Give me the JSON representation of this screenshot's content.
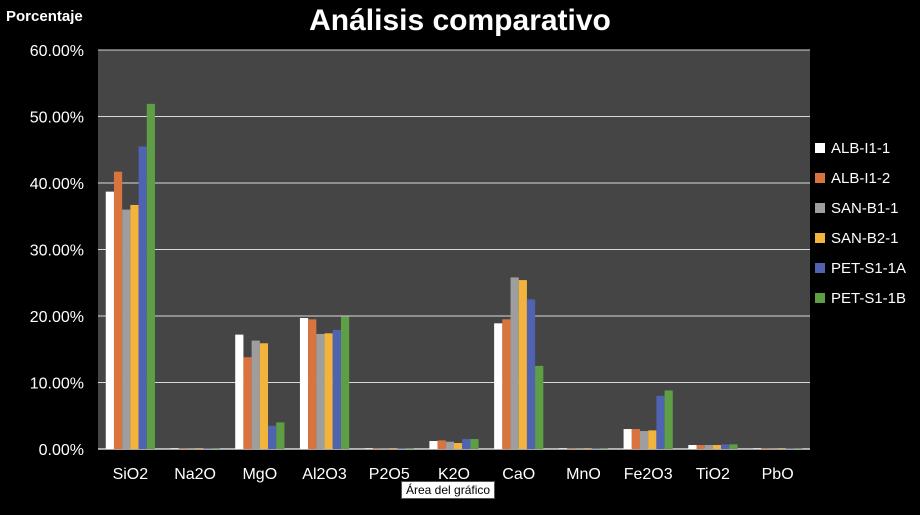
{
  "chart_data": {
    "type": "bar",
    "title": "Análisis comparativo",
    "ylabel": "Porcentaje",
    "xlabel": "",
    "ylim": [
      0,
      60
    ],
    "yticks": [
      "0.00%",
      "10.00%",
      "20.00%",
      "30.00%",
      "40.00%",
      "50.00%",
      "60.00%"
    ],
    "categories": [
      "SiO2",
      "Na2O",
      "MgO",
      "Al2O3",
      "P2O5",
      "K2O",
      "CaO",
      "MnO",
      "Fe2O3",
      "TiO2",
      "PbO"
    ],
    "grid": true,
    "legend_position": "right",
    "series": [
      {
        "name": "ALB-I1-1",
        "color": "#ffffff",
        "values": [
          38.7,
          0.1,
          17.2,
          19.7,
          0.1,
          1.2,
          18.9,
          0.1,
          3.0,
          0.6,
          0.1
        ]
      },
      {
        "name": "ALB-I1-2",
        "color": "#d9743f",
        "values": [
          41.7,
          0.1,
          13.8,
          19.5,
          0.1,
          1.3,
          19.5,
          0.1,
          3.0,
          0.6,
          0.1
        ]
      },
      {
        "name": "SAN-B1-1",
        "color": "#9e9e9e",
        "values": [
          36.0,
          0.1,
          16.3,
          17.3,
          0.1,
          1.1,
          25.8,
          0.1,
          2.7,
          0.6,
          0.1
        ]
      },
      {
        "name": "SAN-B2-1",
        "color": "#f2b43c",
        "values": [
          36.7,
          0.1,
          15.9,
          17.4,
          0.1,
          0.9,
          25.4,
          0.1,
          2.8,
          0.6,
          0.1
        ]
      },
      {
        "name": "PET-S1-1A",
        "color": "#4f63b0",
        "values": [
          45.5,
          0.1,
          3.5,
          17.9,
          0.1,
          1.5,
          22.5,
          0.1,
          8.0,
          0.7,
          0.1
        ]
      },
      {
        "name": "PET-S1-1B",
        "color": "#5e9e45",
        "values": [
          51.9,
          0.1,
          4.0,
          19.9,
          0.1,
          1.5,
          12.5,
          0.1,
          8.8,
          0.7,
          0.1
        ]
      }
    ]
  },
  "plot_background": "#454545",
  "axis_color": "#d9d9d9",
  "tooltip": "Área del gráfico"
}
